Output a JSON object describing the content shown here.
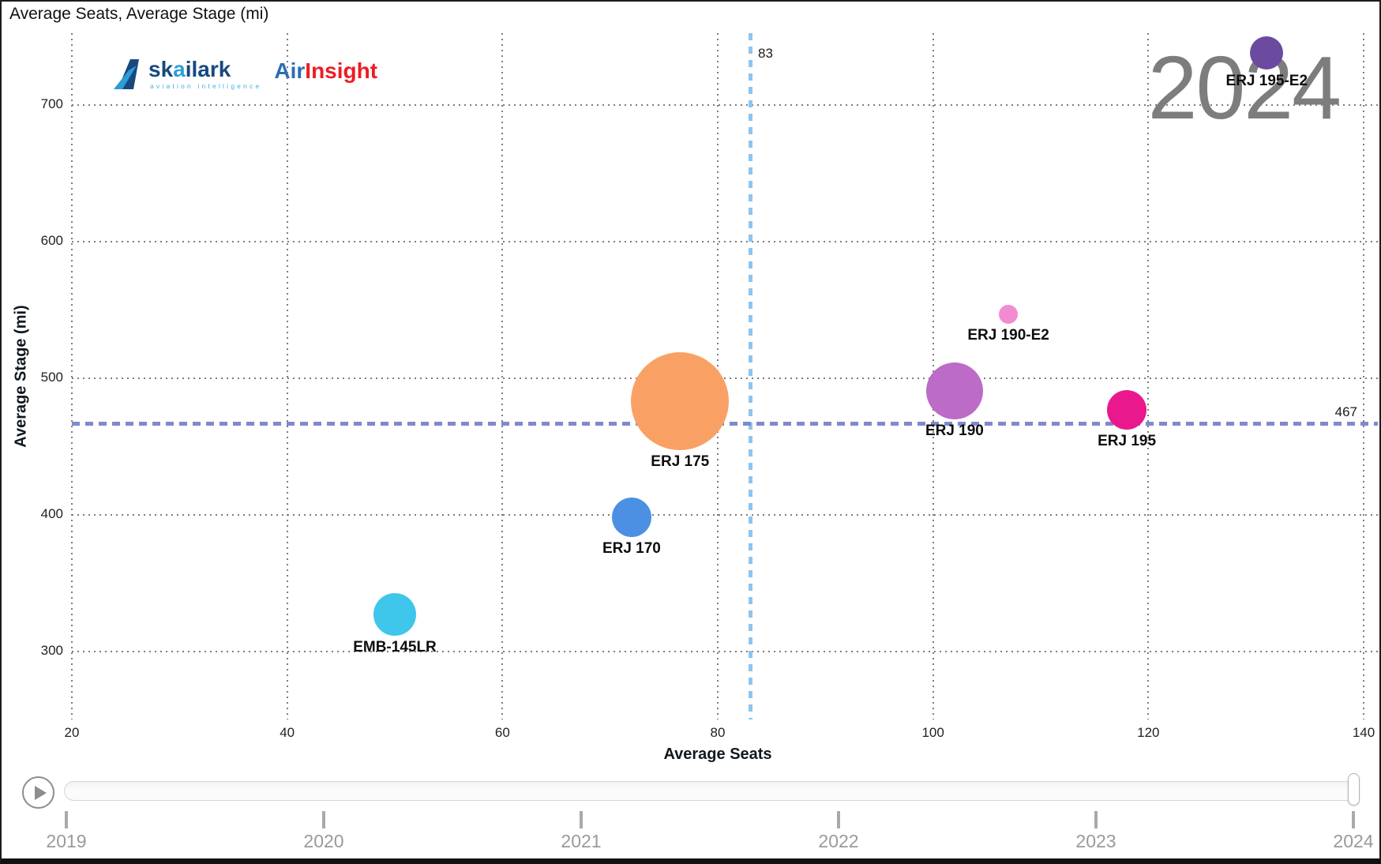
{
  "title": "Average Seats, Average Stage (mi)",
  "logo": {
    "brand_p1": "sk",
    "brand_p2": "a",
    "brand_p3": "ilark",
    "tagline": "aviation intelligence",
    "product_air": "Air",
    "product_insight": "Insight"
  },
  "year_display": "2024",
  "axes": {
    "x_title": "Average Seats",
    "y_title": "Average Stage (mi)"
  },
  "ref_lines": {
    "x_label": "83",
    "y_label": "467"
  },
  "chart_data": {
    "type": "scatter",
    "title": "Average Seats, Average Stage (mi)",
    "xlabel": "Average Seats",
    "ylabel": "Average Stage (mi)",
    "xlim": [
      20,
      140
    ],
    "ylim": [
      250,
      752
    ],
    "x_ticks": [
      20,
      40,
      60,
      80,
      100,
      120,
      140
    ],
    "y_ticks": [
      700,
      600,
      500,
      400,
      300
    ],
    "grid": true,
    "year": "2024",
    "reference_lines": {
      "vertical_x": 83,
      "horizontal_y": 467
    },
    "series": [
      {
        "name": "EMB-145LR",
        "seats": 50,
        "stage_mi": 327,
        "radius_px": 27,
        "color": "#3EC7EA"
      },
      {
        "name": "ERJ 170",
        "seats": 72,
        "stage_mi": 398,
        "radius_px": 25,
        "color": "#4B90E2"
      },
      {
        "name": "ERJ 175",
        "seats": 76.5,
        "stage_mi": 483,
        "radius_px": 62,
        "color": "#F9A164"
      },
      {
        "name": "ERJ 190",
        "seats": 102,
        "stage_mi": 491,
        "radius_px": 36,
        "color": "#BC6BC7"
      },
      {
        "name": "ERJ 190-E2",
        "seats": 107,
        "stage_mi": 547,
        "radius_px": 12,
        "color": "#F38BD3"
      },
      {
        "name": "ERJ 195",
        "seats": 118,
        "stage_mi": 477,
        "radius_px": 25,
        "color": "#E9188C"
      },
      {
        "name": "ERJ 195-E2",
        "seats": 131,
        "stage_mi": 738,
        "radius_px": 21,
        "color": "#6A4B9F"
      }
    ]
  },
  "timeline": {
    "years": [
      "2019",
      "2020",
      "2021",
      "2022",
      "2023",
      "2024"
    ],
    "current": "2024"
  },
  "colors": {
    "vertical_ref": "#8EC4EE",
    "horizontal_ref": "#7F8ACD",
    "grid": "#7D7D7D",
    "big_year_text": "#7D7D7D",
    "timeline_text": "#9A9A9A"
  }
}
